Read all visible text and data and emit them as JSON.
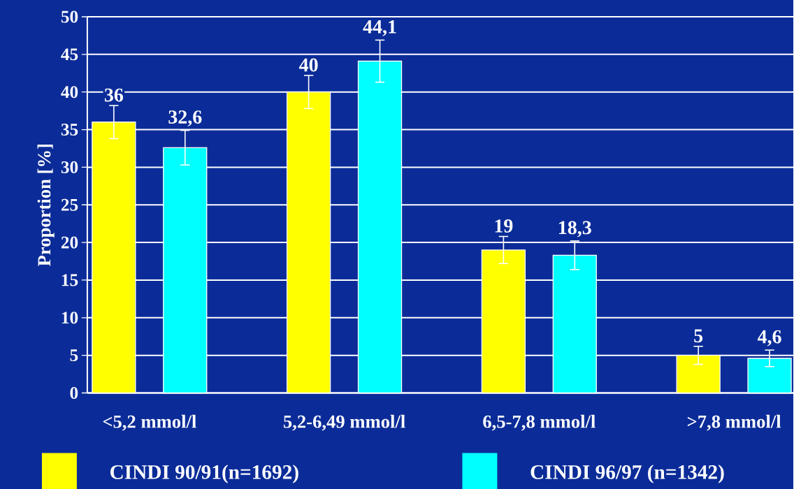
{
  "chart_data": {
    "type": "bar",
    "ylabel": "Proportion [%]",
    "categories": [
      "<5,2 mmol/l",
      "5,2-6,49 mmol/l",
      "6,5-7,8 mmol/l",
      ">7,8 mmol/l"
    ],
    "series": [
      {
        "name": "CINDI 90/91(n=1692)",
        "color": "#ffff00",
        "values": [
          36,
          40,
          19,
          5
        ],
        "errors": [
          2.2,
          2.2,
          1.8,
          1.2
        ],
        "value_labels": [
          "36",
          "40",
          "19",
          "5"
        ]
      },
      {
        "name": "CINDI 96/97 (n=1342)",
        "color": "#00ffff",
        "values": [
          32.6,
          44.1,
          18.3,
          4.6
        ],
        "errors": [
          2.3,
          2.8,
          1.9,
          1.1
        ],
        "value_labels": [
          "32,6",
          "44,1",
          "18,3",
          "4,6"
        ]
      }
    ],
    "ylim": [
      0,
      50
    ],
    "yticks": [
      0,
      5,
      10,
      15,
      20,
      25,
      30,
      35,
      40,
      45,
      50
    ],
    "grid": "y",
    "legend": "bottom"
  }
}
